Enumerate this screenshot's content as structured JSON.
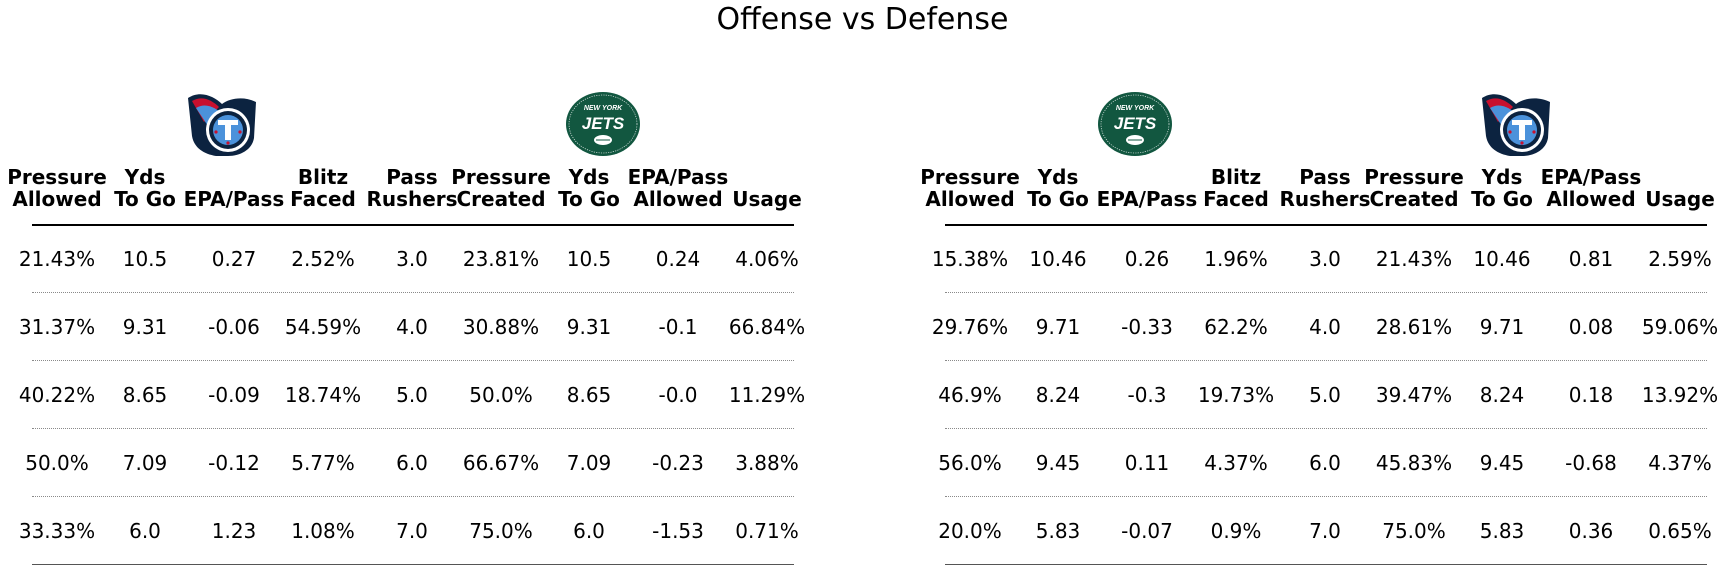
{
  "title": "Offense vs Defense",
  "colors": {
    "titans_navy": "#0C2340",
    "titans_blue": "#4B92DB",
    "titans_red": "#C8102E",
    "jets_green": "#125740"
  },
  "chart_data": [
    {
      "type": "table",
      "logos": [
        {
          "team": "titans",
          "icon": "titans-logo-icon"
        },
        {
          "team": "jets",
          "icon": "jets-logo-icon",
          "text_top": "NEW YORK",
          "text_main": "JETS"
        }
      ],
      "columns": [
        [
          "Pressure",
          "Allowed"
        ],
        [
          "Yds",
          "To Go"
        ],
        [
          "",
          "EPA/Pass"
        ],
        [
          "Blitz",
          "Faced"
        ],
        [
          "Pass",
          "Rushers"
        ],
        [
          "Pressure",
          "Created"
        ],
        [
          "Yds",
          "To Go"
        ],
        [
          "EPA/Pass",
          "Allowed"
        ],
        [
          "",
          "Usage"
        ]
      ],
      "rows": [
        [
          "21.43%",
          "10.5",
          "0.27",
          "2.52%",
          "3.0",
          "23.81%",
          "10.5",
          "0.24",
          "4.06%"
        ],
        [
          "31.37%",
          "9.31",
          "-0.06",
          "54.59%",
          "4.0",
          "30.88%",
          "9.31",
          "-0.1",
          "66.84%"
        ],
        [
          "40.22%",
          "8.65",
          "-0.09",
          "18.74%",
          "5.0",
          "50.0%",
          "8.65",
          "-0.0",
          "11.29%"
        ],
        [
          "50.0%",
          "7.09",
          "-0.12",
          "5.77%",
          "6.0",
          "66.67%",
          "7.09",
          "-0.23",
          "3.88%"
        ],
        [
          "33.33%",
          "6.0",
          "1.23",
          "1.08%",
          "7.0",
          "75.0%",
          "6.0",
          "-1.53",
          "0.71%"
        ]
      ]
    },
    {
      "type": "table",
      "logos": [
        {
          "team": "jets",
          "icon": "jets-logo-icon",
          "text_top": "NEW YORK",
          "text_main": "JETS"
        },
        {
          "team": "titans",
          "icon": "titans-logo-icon"
        }
      ],
      "columns": [
        [
          "Pressure",
          "Allowed"
        ],
        [
          "Yds",
          "To Go"
        ],
        [
          "",
          "EPA/Pass"
        ],
        [
          "Blitz",
          "Faced"
        ],
        [
          "Pass",
          "Rushers"
        ],
        [
          "Pressure",
          "Created"
        ],
        [
          "Yds",
          "To Go"
        ],
        [
          "EPA/Pass",
          "Allowed"
        ],
        [
          "",
          "Usage"
        ]
      ],
      "rows": [
        [
          "15.38%",
          "10.46",
          "0.26",
          "1.96%",
          "3.0",
          "21.43%",
          "10.46",
          "0.81",
          "2.59%"
        ],
        [
          "29.76%",
          "9.71",
          "-0.33",
          "62.2%",
          "4.0",
          "28.61%",
          "9.71",
          "0.08",
          "59.06%"
        ],
        [
          "46.9%",
          "8.24",
          "-0.3",
          "19.73%",
          "5.0",
          "39.47%",
          "8.24",
          "0.18",
          "13.92%"
        ],
        [
          "56.0%",
          "9.45",
          "0.11",
          "4.37%",
          "6.0",
          "45.83%",
          "9.45",
          "-0.68",
          "4.37%"
        ],
        [
          "20.0%",
          "5.83",
          "-0.07",
          "0.9%",
          "7.0",
          "75.0%",
          "5.83",
          "0.36",
          "0.65%"
        ]
      ]
    }
  ]
}
